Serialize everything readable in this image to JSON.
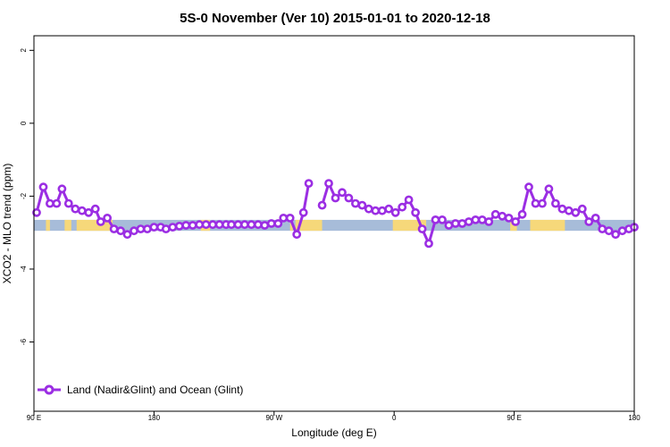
{
  "chart_data": {
    "type": "line",
    "title": "5S-0 November (Ver 10)   2015-01-01 to 2020-12-18",
    "xlabel": "Longitude (deg E)",
    "ylabel": "XCO2 - MLO trend (ppm)",
    "xlim": [
      90,
      540
    ],
    "ylim": [
      -7.9,
      2.4
    ],
    "x_ticks": [
      {
        "value": 90,
        "label": "90 E"
      },
      {
        "value": 180,
        "label": "180"
      },
      {
        "value": 270,
        "label": "90 W"
      },
      {
        "value": 360,
        "label": "0"
      },
      {
        "value": 450,
        "label": "90 E"
      },
      {
        "value": 540,
        "label": "180"
      }
    ],
    "y_ticks": [
      2,
      0,
      -2,
      -4,
      -6
    ],
    "grid": false,
    "legend_position": "bottom-left",
    "band": {
      "y_top": -2.65,
      "y_bottom": -2.95,
      "ocean_color": "#a7bcd9",
      "land_color": "#f6d87a"
    },
    "land_segments": [
      [
        99,
        102
      ],
      [
        113,
        118
      ],
      [
        122,
        149
      ],
      [
        215,
        222
      ],
      [
        282,
        284
      ],
      [
        286,
        306
      ],
      [
        359,
        384
      ],
      [
        447,
        452
      ],
      [
        462,
        488
      ]
    ],
    "series": [
      {
        "name": "Land (Nadir&Glint) and Ocean (Glint)",
        "color": "#9b2ee3",
        "x": [
          92,
          97,
          102,
          107,
          111,
          116,
          121,
          126,
          131,
          136,
          140,
          145,
          150,
          155,
          160,
          165,
          170,
          175,
          180,
          185,
          189,
          194,
          199,
          204,
          209,
          214,
          219,
          224,
          229,
          234,
          238,
          243,
          248,
          253,
          258,
          263,
          268,
          273,
          277,
          282,
          287,
          292,
          296,
          301,
          306,
          311,
          316,
          321,
          326,
          331,
          336,
          341,
          346,
          351,
          356,
          361,
          366,
          371,
          376,
          381,
          386,
          391,
          396,
          401,
          406,
          411,
          416,
          421,
          426,
          431,
          436,
          441,
          446,
          451,
          456,
          461,
          466,
          471,
          476,
          481,
          486,
          491,
          496,
          501,
          506,
          511,
          516,
          521,
          526,
          531,
          536,
          540
        ],
        "values": [
          -2.45,
          -1.75,
          -2.2,
          -2.2,
          -1.8,
          -2.2,
          -2.35,
          -2.4,
          -2.45,
          -2.35,
          -2.7,
          -2.6,
          -2.9,
          -2.95,
          -3.05,
          -2.95,
          -2.9,
          -2.9,
          -2.85,
          -2.85,
          -2.9,
          -2.85,
          -2.82,
          -2.8,
          -2.8,
          -2.78,
          -2.78,
          -2.78,
          -2.78,
          -2.78,
          -2.78,
          -2.78,
          -2.78,
          -2.78,
          -2.78,
          -2.8,
          -2.75,
          -2.75,
          -2.6,
          -2.6,
          -3.05,
          -2.45,
          -1.65,
          null,
          -2.25,
          -1.65,
          -2.05,
          -1.9,
          -2.05,
          -2.2,
          -2.25,
          -2.35,
          -2.4,
          -2.4,
          -2.35,
          -2.45,
          -2.3,
          -2.1,
          -2.45,
          -2.9,
          -3.3,
          -2.65,
          -2.65,
          -2.8,
          -2.75,
          -2.75,
          -2.7,
          -2.65,
          -2.65,
          -2.7,
          -2.5,
          -2.55,
          -2.6,
          -2.7,
          -2.5,
          -1.75,
          -2.2,
          -2.2,
          -1.8,
          -2.2,
          -2.35,
          -2.4,
          -2.45,
          -2.35,
          -2.7,
          -2.6,
          -2.9,
          -2.95,
          -3.05,
          -2.95,
          -2.9,
          -2.85
        ]
      }
    ]
  }
}
